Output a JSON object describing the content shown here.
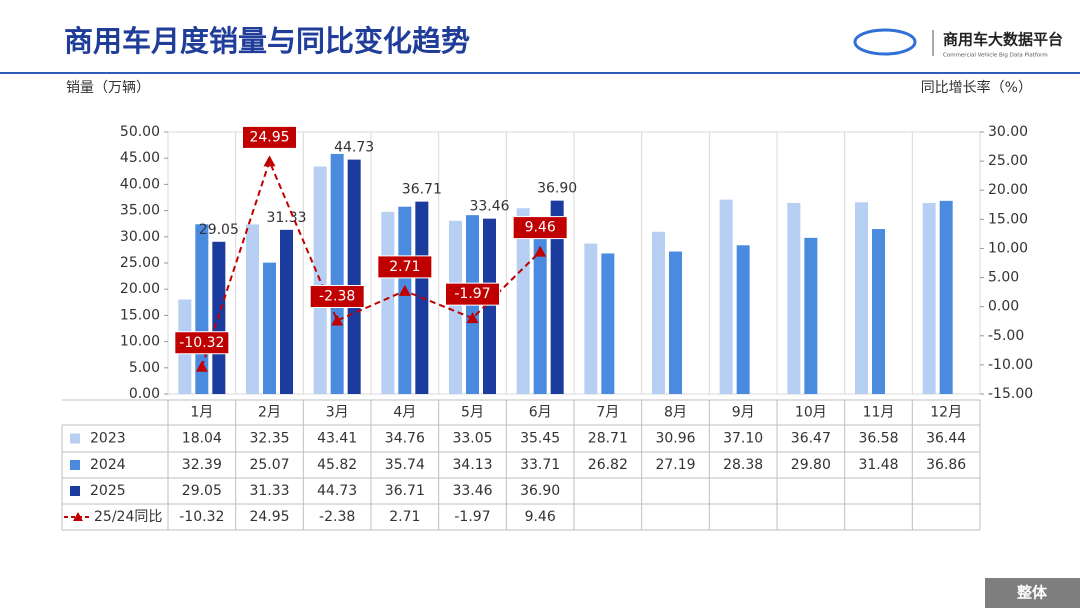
{
  "header": {
    "title": "商用车月度销量与同比变化趋势",
    "logo_text": "商用车大数据平台",
    "logo_subtext": "Commercial Vehicle Big Data Platform"
  },
  "footer": {
    "button": "整体"
  },
  "chart_data": {
    "type": "bar_line",
    "y_label": "销量（万辆）",
    "y2_label": "同比增长率（%）",
    "categories": [
      "1月",
      "2月",
      "3月",
      "4月",
      "5月",
      "6月",
      "7月",
      "8月",
      "9月",
      "10月",
      "11月",
      "12月"
    ],
    "ylim": [
      0,
      50
    ],
    "yticks": [
      {
        "value": 0,
        "label": "0.00"
      },
      {
        "value": 5,
        "label": "5.00"
      },
      {
        "value": 10,
        "label": "10.00"
      },
      {
        "value": 15,
        "label": "15.00"
      },
      {
        "value": 20,
        "label": "20.00"
      },
      {
        "value": 25,
        "label": "25.00"
      },
      {
        "value": 30,
        "label": "30.00"
      },
      {
        "value": 35,
        "label": "35.00"
      },
      {
        "value": 40,
        "label": "40.00"
      },
      {
        "value": 45,
        "label": "45.00"
      },
      {
        "value": 50,
        "label": "50.00"
      }
    ],
    "y2lim": [
      -15,
      30
    ],
    "y2ticks": [
      {
        "value": -15,
        "label": "-15.00"
      },
      {
        "value": -10,
        "label": "-10.00"
      },
      {
        "value": -5,
        "label": "-5.00"
      },
      {
        "value": 0,
        "label": "0.00"
      },
      {
        "value": 5,
        "label": "5.00"
      },
      {
        "value": 10,
        "label": "10.00"
      },
      {
        "value": 15,
        "label": "15.00"
      },
      {
        "value": 20,
        "label": "20.00"
      },
      {
        "value": 25,
        "label": "25.00"
      },
      {
        "value": 30,
        "label": "30.00"
      }
    ],
    "series": [
      {
        "name": "2023",
        "type": "bar",
        "color": "#b7cff2",
        "values": [
          18.04,
          32.35,
          43.41,
          34.76,
          33.05,
          35.45,
          28.71,
          30.96,
          37.1,
          36.47,
          36.58,
          36.44
        ],
        "value_labels": [
          "18.04",
          "32.35",
          "43.41",
          "34.76",
          "33.05",
          "35.45",
          "28.71",
          "30.96",
          "37.10",
          "36.47",
          "36.58",
          "36.44"
        ]
      },
      {
        "name": "2024",
        "type": "bar",
        "color": "#4a8be0",
        "values": [
          32.39,
          25.07,
          45.82,
          35.74,
          34.13,
          33.71,
          26.82,
          27.19,
          28.38,
          29.8,
          31.48,
          36.86
        ],
        "value_labels": [
          "32.39",
          "25.07",
          "45.82",
          "35.74",
          "34.13",
          "33.71",
          "26.82",
          "27.19",
          "28.38",
          "29.80",
          "31.48",
          "36.86"
        ]
      },
      {
        "name": "2025",
        "type": "bar",
        "color": "#1b3b9e",
        "show_labels": true,
        "values": [
          29.05,
          31.33,
          44.73,
          36.71,
          33.46,
          36.9,
          null,
          null,
          null,
          null,
          null,
          null
        ],
        "value_labels": [
          "29.05",
          "31.33",
          "44.73",
          "36.71",
          "33.46",
          "36.90",
          null,
          null,
          null,
          null,
          null,
          null
        ]
      },
      {
        "name": "25/24同比",
        "type": "line",
        "axis": "y2",
        "color": "#c00000",
        "show_labels": true,
        "values": [
          -10.32,
          24.95,
          -2.38,
          2.71,
          -1.97,
          9.46,
          null,
          null,
          null,
          null,
          null,
          null
        ],
        "value_labels": [
          "-10.32",
          "24.95",
          "-2.38",
          "2.71",
          "-1.97",
          "9.46",
          null,
          null,
          null,
          null,
          null,
          null
        ]
      }
    ]
  }
}
